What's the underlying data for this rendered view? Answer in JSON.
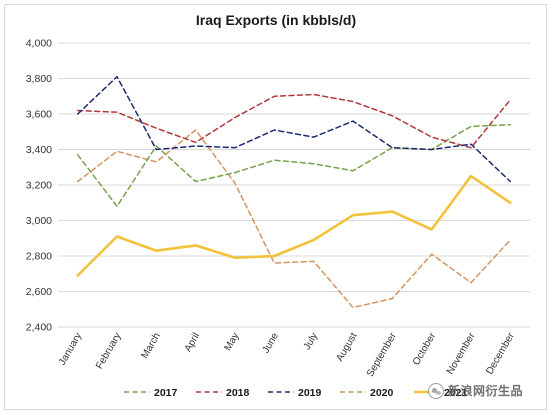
{
  "chart_data": {
    "type": "line",
    "title": "Iraq Exports (in kbbls/d)",
    "xlabel": "",
    "ylabel": "",
    "ylim": [
      2400,
      4000
    ],
    "yticks": [
      2400,
      2600,
      2800,
      3000,
      3200,
      3400,
      3600,
      3800,
      4000
    ],
    "ytick_labels": [
      "2,400",
      "2,600",
      "2,800",
      "3,000",
      "3,200",
      "3,400",
      "3,600",
      "3,800",
      "4,000"
    ],
    "categories": [
      "January",
      "February",
      "March",
      "April",
      "May",
      "June",
      "July",
      "August",
      "September",
      "October",
      "November",
      "December"
    ],
    "grid": "horizontal",
    "legend_position": "bottom",
    "series": [
      {
        "name": "2017",
        "color": "#77a14a",
        "style": "dashed",
        "values": [
          3370,
          3080,
          3420,
          3220,
          3270,
          3340,
          3320,
          3280,
          3410,
          3400,
          3530,
          3540
        ]
      },
      {
        "name": "2018",
        "color": "#b2373a",
        "style": "dashed",
        "values": [
          3620,
          3610,
          3520,
          3440,
          3580,
          3700,
          3710,
          3670,
          3590,
          3470,
          3410,
          3680
        ]
      },
      {
        "name": "2019",
        "color": "#1c2a6e",
        "style": "dashed",
        "values": [
          3600,
          3810,
          3400,
          3420,
          3410,
          3510,
          3470,
          3560,
          3410,
          3400,
          3430,
          3220
        ]
      },
      {
        "name": "2020",
        "color": "#d4955e",
        "style": "dashed",
        "values": [
          3220,
          3390,
          3330,
          3510,
          3210,
          2760,
          2770,
          2510,
          2560,
          2810,
          2650,
          2890
        ]
      },
      {
        "name": "2021",
        "color": "#f2c23a",
        "style": "solid",
        "values": [
          2690,
          2910,
          2830,
          2860,
          2790,
          2800,
          2890,
          3030,
          3050,
          2950,
          3250,
          3100
        ]
      }
    ]
  },
  "watermark": {
    "text": "新浪网衍生品",
    "icon": "wechat-icon"
  }
}
